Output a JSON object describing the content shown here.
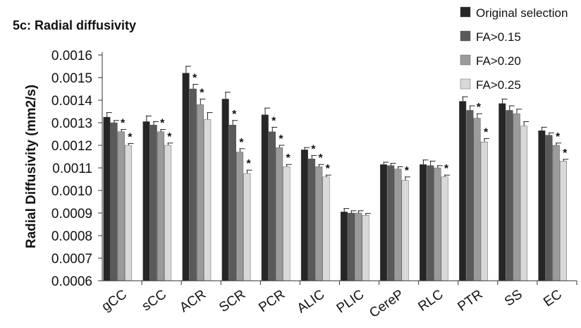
{
  "chart_data": {
    "type": "bar",
    "title": "5c: Radial diffusivity",
    "ylabel": "Radial Diffusivity (mm2/s)",
    "xlabel": "",
    "ylim": [
      0.0006,
      0.0016
    ],
    "yticks": [
      "0.0006",
      "0.0007",
      "0.0008",
      "0.0009",
      "0.0010",
      "0.0011",
      "0.0012",
      "0.0013",
      "0.0014",
      "0.0015",
      "0.0016"
    ],
    "categories": [
      "gCC",
      "sCC",
      "ACR",
      "SCR",
      "PCR",
      "ALIC",
      "PLIC",
      "CereP",
      "RLC",
      "PTR",
      "SS",
      "EC"
    ],
    "legend_position": "top-right",
    "series": [
      {
        "name": "Original selection",
        "color": "#262626",
        "values": [
          0.001325,
          0.001305,
          0.00152,
          0.001405,
          0.001335,
          0.00118,
          0.000905,
          0.001115,
          0.001115,
          0.001395,
          0.001385,
          0.001265
        ],
        "errors": [
          2e-05,
          2.5e-05,
          3e-05,
          3e-05,
          3e-05,
          1e-05,
          1.5e-05,
          1e-05,
          2e-05,
          2e-05,
          2e-05,
          1.5e-05
        ],
        "stars": [
          false,
          false,
          false,
          false,
          false,
          false,
          false,
          false,
          false,
          false,
          false,
          false
        ]
      },
      {
        "name": "FA>0.15",
        "color": "#5a5a5a",
        "values": [
          0.0013,
          0.00129,
          0.00145,
          0.00129,
          0.00126,
          0.00114,
          0.0009,
          0.00111,
          0.00111,
          0.001355,
          0.001355,
          0.001245
        ],
        "errors": [
          1e-05,
          1.5e-05,
          2e-05,
          2e-05,
          2e-05,
          1.5e-05,
          1e-05,
          1e-05,
          2e-05,
          2e-05,
          2e-05,
          1e-05
        ],
        "stars": [
          false,
          false,
          true,
          true,
          true,
          true,
          false,
          false,
          false,
          false,
          false,
          false
        ]
      },
      {
        "name": "FA>0.20",
        "color": "#9b9b9b",
        "values": [
          0.00126,
          0.00126,
          0.00138,
          0.00117,
          0.00119,
          0.001105,
          0.0009,
          0.001095,
          0.0011,
          0.00132,
          0.00134,
          0.0012
        ],
        "errors": [
          1e-05,
          1e-05,
          2.5e-05,
          1.5e-05,
          1e-05,
          1e-05,
          1e-05,
          1e-05,
          1e-05,
          2e-05,
          2e-05,
          1e-05
        ],
        "stars": [
          true,
          true,
          true,
          true,
          true,
          true,
          false,
          false,
          false,
          true,
          false,
          true
        ]
      },
      {
        "name": "FA>0.25",
        "color": "#d9d9d9",
        "values": [
          0.0012,
          0.0012,
          0.001315,
          0.001075,
          0.001105,
          0.00106,
          0.00089,
          0.001045,
          0.00106,
          0.001215,
          0.001285,
          0.00113
        ],
        "errors": [
          8e-06,
          1e-05,
          3e-05,
          1.5e-05,
          1e-05,
          8e-06,
          8e-06,
          1.5e-05,
          8e-06,
          1.5e-05,
          2e-05,
          8e-06
        ],
        "stars": [
          true,
          true,
          false,
          true,
          true,
          true,
          false,
          true,
          true,
          true,
          false,
          true
        ]
      }
    ],
    "annotation_marker": "*"
  }
}
